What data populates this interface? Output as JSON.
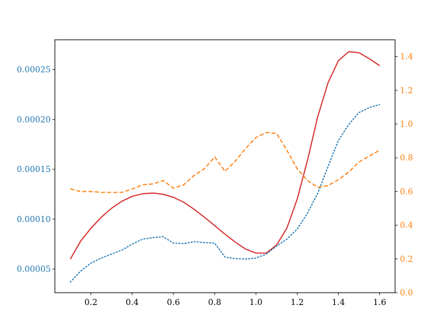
{
  "chart_data": {
    "type": "line",
    "title": "",
    "xlabel": "",
    "x": [
      0.1,
      0.15,
      0.2,
      0.25,
      0.3,
      0.35,
      0.4,
      0.45,
      0.5,
      0.55,
      0.6,
      0.65,
      0.7,
      0.75,
      0.8,
      0.85,
      0.9,
      0.95,
      1.0,
      1.05,
      1.1,
      1.15,
      1.2,
      1.25,
      1.3,
      1.35,
      1.4,
      1.45,
      1.5,
      1.55,
      1.6
    ],
    "xlim": [
      0.025,
      1.675
    ],
    "x_ticks": [
      "0.2",
      "0.4",
      "0.6",
      "0.8",
      "1.0",
      "1.2",
      "1.4",
      "1.6"
    ],
    "left_axis": {
      "ylim": [
        2.63e-05,
        0.00028
      ],
      "color": "#1f77b4",
      "ticks": [
        "0.00005",
        "0.00010",
        "0.00015",
        "0.00020",
        "0.00025"
      ]
    },
    "right_axis": {
      "ylim": [
        0.0,
        1.5
      ],
      "color": "#ff7f0e",
      "ticks": [
        "0.0",
        "0.2",
        "0.4",
        "0.6",
        "0.8",
        "1.0",
        "1.2",
        "1.4"
      ]
    },
    "series": [
      {
        "axis": "left",
        "color": "#d62728",
        "style": "solid",
        "values": [
          6e-05,
          7.8e-05,
          9.1e-05,
          0.000102,
          0.000111,
          0.000118,
          0.000123,
          0.0001255,
          0.0001262,
          0.000125,
          0.000122,
          0.000117,
          0.00011,
          0.000102,
          9.35e-05,
          8.5e-05,
          7.7e-05,
          7e-05,
          6.6e-05,
          6.6e-05,
          7.4e-05,
          9.1e-05,
          0.00012,
          0.000159,
          0.000203,
          0.000237,
          0.000259,
          0.000268,
          0.000267,
          0.000261,
          0.000254
        ]
      },
      {
        "axis": "left",
        "color": "#1f77b4",
        "style": "dotted",
        "values": [
          3.7e-05,
          4.8e-05,
          5.6e-05,
          6.1e-05,
          6.5e-05,
          6.9e-05,
          7.5e-05,
          8e-05,
          8.15e-05,
          8.25e-05,
          7.6e-05,
          7.55e-05,
          7.75e-05,
          7.65e-05,
          7.6e-05,
          6.2e-05,
          6.05e-05,
          6e-05,
          6.1e-05,
          6.5e-05,
          7.3e-05,
          8e-05,
          9e-05,
          0.000106,
          0.000126,
          0.000153,
          0.000179,
          0.000195,
          0.000207,
          0.000212,
          0.000215
        ]
      },
      {
        "axis": "right",
        "color": "#ff7f0e",
        "style": "dashed",
        "values": [
          0.615,
          0.6,
          0.6,
          0.595,
          0.595,
          0.595,
          0.615,
          0.64,
          0.645,
          0.665,
          0.62,
          0.64,
          0.695,
          0.735,
          0.805,
          0.72,
          0.78,
          0.855,
          0.92,
          0.95,
          0.945,
          0.845,
          0.735,
          0.665,
          0.625,
          0.635,
          0.67,
          0.715,
          0.775,
          0.81,
          0.845
        ]
      }
    ]
  }
}
